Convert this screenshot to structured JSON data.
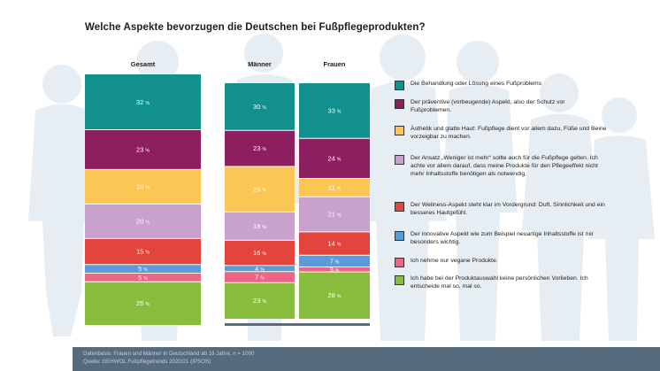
{
  "title": "Welche Aspekte bevorzugen die Deutschen bei Fußpflegeprodukten?",
  "chart_data": {
    "type": "bar",
    "stacked": "100%",
    "categories": [
      "Gesamt",
      "Männer",
      "Frauen"
    ],
    "value_suffix": "%",
    "series": [
      {
        "name": "Die Behandlung oder Lösung eines Fußproblems",
        "color": "#12908e",
        "values": [
          32,
          30,
          33
        ]
      },
      {
        "name": "Der präventive (vorbeugende) Aspekt, also der Schutz vor Fußproblemen.",
        "color": "#8e1f5f",
        "values": [
          23,
          23,
          24
        ]
      },
      {
        "name": "Ästhetik und glatte Haut: Fußpflege dient vor allem dazu, Füße und Beine vorzeigbar zu machen.",
        "color": "#fbc654",
        "values": [
          20,
          29,
          11
        ]
      },
      {
        "name": "Der Ansatz „Weniger ist mehr“ sollte auch für die Fußpflege gelten. Ich achte vor allem darauf, dass meine Produkte für den Pflegeeffekt nicht mehr Inhaltsstoffe benötigen als notwendig.",
        "color": "#c9a1cd",
        "values": [
          20,
          18,
          21
        ]
      },
      {
        "name": "Der Wellness-Aspekt steht klar im Vordergrund: Duft, Sinnlichkeit und ein besseres Hautgefühl.",
        "color": "#e3443b",
        "values": [
          15,
          16,
          14
        ]
      },
      {
        "name": "Der innovative Aspekt wie zum Beispiel neuartige Inhaltsstoffe ist mir besonders wichtig.",
        "color": "#5b9bd9",
        "values": [
          5,
          4,
          7
        ]
      },
      {
        "name": "Ich nehme nur vegane Produkte.",
        "color": "#ec6585",
        "values": [
          5,
          7,
          3
        ]
      },
      {
        "name": "Ich habe bei der Produktauswahl keine persönlichen Vorlieben. Ich entscheide mal so, mal so.",
        "color": "#88bd3e",
        "values": [
          25,
          23,
          28
        ]
      }
    ]
  },
  "footer": {
    "line1": "Datenbasis: Frauen und Männer in Deutschland ab 16 Jahre, n = 1000",
    "line2": "Quelle: GEHWOL Fußpflegetrends 2020/21 (IPSOS)"
  },
  "colors": {
    "footer_bg": "#566b7c",
    "group_line": "#566b7c",
    "silhouette": "#e6eef4"
  }
}
